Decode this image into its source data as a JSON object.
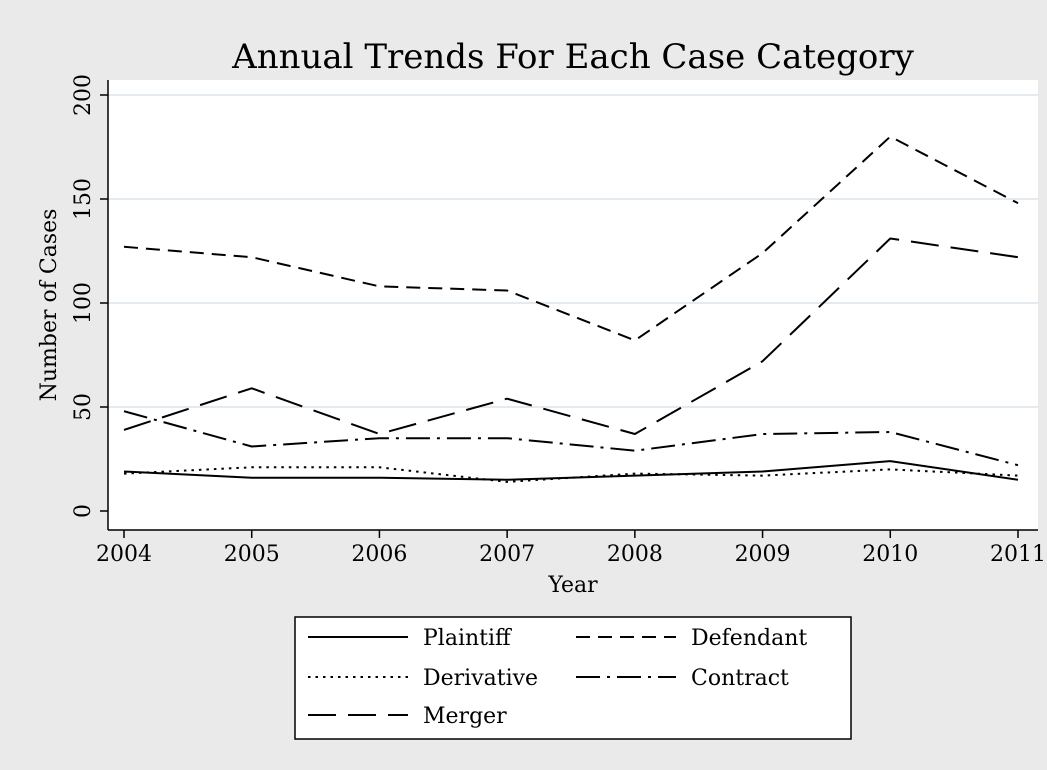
{
  "chart_data": {
    "type": "line",
    "title": "Annual Trends For Each Case Category",
    "xlabel": "Year",
    "ylabel": "Number of Cases",
    "x": [
      2004,
      2005,
      2006,
      2007,
      2008,
      2009,
      2010,
      2011
    ],
    "xlim": [
      2004,
      2011
    ],
    "ylim": [
      0,
      200
    ],
    "yticks": [
      0,
      50,
      100,
      150,
      200
    ],
    "grid": true,
    "legend_position": "bottom",
    "series": [
      {
        "name": "Plaintiff",
        "style": "solid",
        "values": [
          19,
          16,
          16,
          15,
          17,
          19,
          24,
          15
        ]
      },
      {
        "name": "Defendant",
        "style": "dash",
        "values": [
          127,
          122,
          108,
          106,
          82,
          124,
          180,
          148
        ]
      },
      {
        "name": "Derivative",
        "style": "dot",
        "values": [
          18,
          21,
          21,
          14,
          18,
          17,
          20,
          17
        ]
      },
      {
        "name": "Contract",
        "style": "dashdot",
        "values": [
          48,
          31,
          35,
          35,
          29,
          37,
          38,
          22
        ]
      },
      {
        "name": "Merger",
        "style": "longdash",
        "values": [
          39,
          59,
          37,
          54,
          37,
          72,
          131,
          122
        ]
      }
    ],
    "colors": {
      "background": "#eaeaea",
      "plot_background": "#ffffff",
      "gridline": "#e4ebf0",
      "line": "#000000"
    }
  }
}
